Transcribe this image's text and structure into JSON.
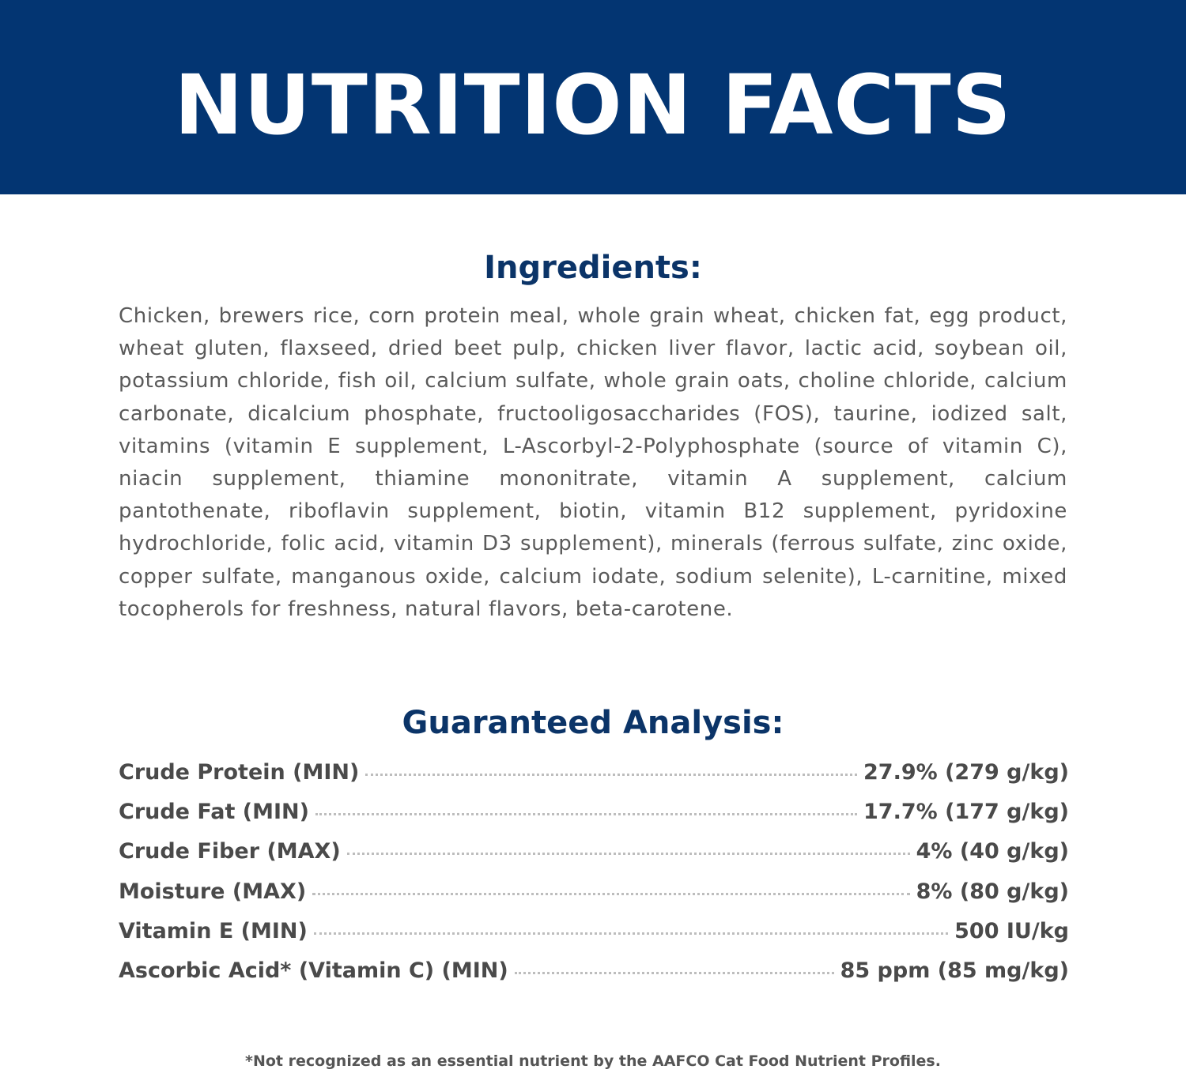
{
  "header": {
    "title": "NUTRITION FACTS",
    "background_color": "#033572"
  },
  "ingredients": {
    "heading": "Ingredients:",
    "text": "Chicken, brewers rice, corn protein meal, whole grain wheat, chicken fat, egg product, wheat gluten, flaxseed, dried beet pulp, chicken liver flavor, lactic acid, soybean oil, potassium chloride, fish oil, calcium sulfate, whole grain oats, choline chloride, calcium carbonate, dicalcium phosphate, fructooligosaccharides (FOS), taurine, iodized salt, vitamins (vitamin E supplement, L-Ascorbyl-2-Polyphosphate (source of vitamin C), niacin supplement, thiamine mononitrate, vitamin A supplement, calcium pantothenate, riboflavin supplement, biotin, vitamin B12 supplement, pyridoxine hydrochloride, folic acid, vitamin D3 supplement), minerals (ferrous sulfate, zinc oxide, copper sulfate, manganous oxide, calcium iodate, sodium selenite), L-carnitine, mixed tocopherols for freshness, natural flavors, beta-carotene."
  },
  "analysis": {
    "heading": "Guaranteed Analysis:",
    "rows": [
      {
        "label": "Crude Protein (MIN)",
        "value": "27.9% (279 g/kg)"
      },
      {
        "label": "Crude Fat (MIN)",
        "value": "17.7% (177 g/kg)"
      },
      {
        "label": "Crude Fiber (MAX)",
        "value": "4% (40 g/kg)"
      },
      {
        "label": "Moisture (MAX)",
        "value": "8% (80 g/kg)"
      },
      {
        "label": "Vitamin E (MIN)",
        "value": "500 IU/kg"
      },
      {
        "label": "Ascorbic Acid* (Vitamin C) (MIN)",
        "value": "85 ppm (85 mg/kg)"
      }
    ]
  },
  "footnote": "*Not recognized as an essential nutrient by the AAFCO Cat Food Nutrient Profiles."
}
